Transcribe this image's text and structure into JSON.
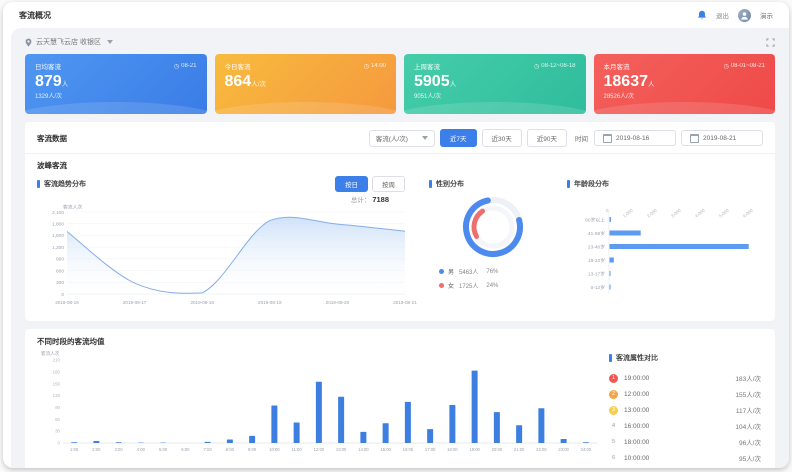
{
  "header": {
    "title": "客流概况",
    "logout_label": "退出",
    "user_name": "演示"
  },
  "location": {
    "label": "云天慧飞云店 收银区"
  },
  "kpi_cards": [
    {
      "title": "日均客流",
      "time": "08-21",
      "value": "879",
      "unit": "人",
      "sub": "1329人/次",
      "grad": [
        "#4f97f2",
        "#3a7ce6"
      ]
    },
    {
      "title": "今日客流",
      "time": "14:00",
      "value": "864",
      "unit": "人/次",
      "sub": "",
      "grad": [
        "#f8bb3d",
        "#f5993f"
      ]
    },
    {
      "title": "上周客流",
      "time": "08-12~08-18",
      "value": "5905",
      "unit": "人",
      "sub": "9051人/次",
      "grad": [
        "#46cdaa",
        "#2fbd9c"
      ]
    },
    {
      "title": "本月客流",
      "time": "08-01~08-21",
      "value": "18637",
      "unit": "人",
      "sub": "28526人/次",
      "grad": [
        "#f4605c",
        "#ee4a48"
      ]
    }
  ],
  "filters": {
    "section_label": "客流数据",
    "metric_select": "客流(人/次)",
    "quick_ranges": [
      "近7天",
      "近30天",
      "近90天"
    ],
    "active_range": "近7天",
    "time_label": "时间",
    "date_start": "2019-08-16",
    "date_end": "2019-08-21"
  },
  "peak_section": {
    "title": "波峰客流"
  },
  "bottom_section": {
    "rank": {
      "title": "客流属性对比",
      "items": [
        {
          "rank": "1",
          "time": "19:00:00",
          "value": "183人/次"
        },
        {
          "rank": "2",
          "time": "12:00:00",
          "value": "155人/次"
        },
        {
          "rank": "3",
          "time": "13:00:00",
          "value": "117人/次"
        },
        {
          "rank": "4",
          "time": "16:00:00",
          "value": "104人/次"
        },
        {
          "rank": "5",
          "time": "18:00:00",
          "value": "96人/次"
        },
        {
          "rank": "6",
          "time": "10:00:00",
          "value": "95人/次"
        }
      ],
      "badge_colors": [
        "#f3574f",
        "#f7a544",
        "#f7cf4b"
      ]
    }
  },
  "chart_data": [
    {
      "type": "area",
      "title": "客流趋势分布",
      "toggle": [
        "按日",
        "按周"
      ],
      "active_toggle": "按日",
      "total_label": "总计：",
      "total_value": "7188",
      "ylabel": "客流人次",
      "x": [
        "2019-08-16",
        "2019-08-17",
        "2019-08-18",
        "2019-08-19",
        "2019-08-20",
        "2019-08-21"
      ],
      "values": [
        1600,
        280,
        30,
        1880,
        1790,
        1608
      ],
      "ylim": [
        0,
        2100
      ],
      "ytick_step": 300,
      "line_color": "#86aee8",
      "fill_color": "#cadef8"
    },
    {
      "type": "pie",
      "title": "性别分布",
      "slices": [
        {
          "label": "男",
          "count": "5463人",
          "pct": 76,
          "color": "#4d8af0"
        },
        {
          "label": "女",
          "count": "1725人",
          "pct": 24,
          "color": "#ee6f6f"
        }
      ]
    },
    {
      "type": "bar-horizontal",
      "title": "年龄段分布",
      "categories": [
        "60岁以上",
        "41-59岁",
        "23-40岁",
        "18-22岁",
        "13-17岁",
        "0-12岁"
      ],
      "values": [
        60,
        1300,
        5800,
        180,
        10,
        15
      ],
      "xlim": [
        0,
        6000
      ],
      "xticks": [
        0,
        1000,
        2000,
        3000,
        4000,
        5000,
        6000
      ],
      "bar_color": "#5b9bf0"
    },
    {
      "type": "bar",
      "title": "不同时段的客流均值",
      "ylabel": "客流人次",
      "categories": [
        "1:00",
        "2:00",
        "3:00",
        "4:00",
        "5:00",
        "6:00",
        "7:00",
        "8:00",
        "9:00",
        "10:00",
        "11:00",
        "12:00",
        "13:00",
        "14:00",
        "15:00",
        "16:00",
        "17:00",
        "18:00",
        "19:00",
        "20:00",
        "21:00",
        "22:00",
        "23:00",
        "24:00"
      ],
      "values": [
        2,
        5,
        2,
        1,
        1,
        0,
        3,
        9,
        18,
        95,
        52,
        155,
        117,
        28,
        50,
        104,
        35,
        96,
        183,
        78,
        45,
        88,
        10,
        2
      ],
      "ylim": [
        0,
        210
      ],
      "ytick_step": 30,
      "bar_color": "#3d7fe0"
    }
  ]
}
